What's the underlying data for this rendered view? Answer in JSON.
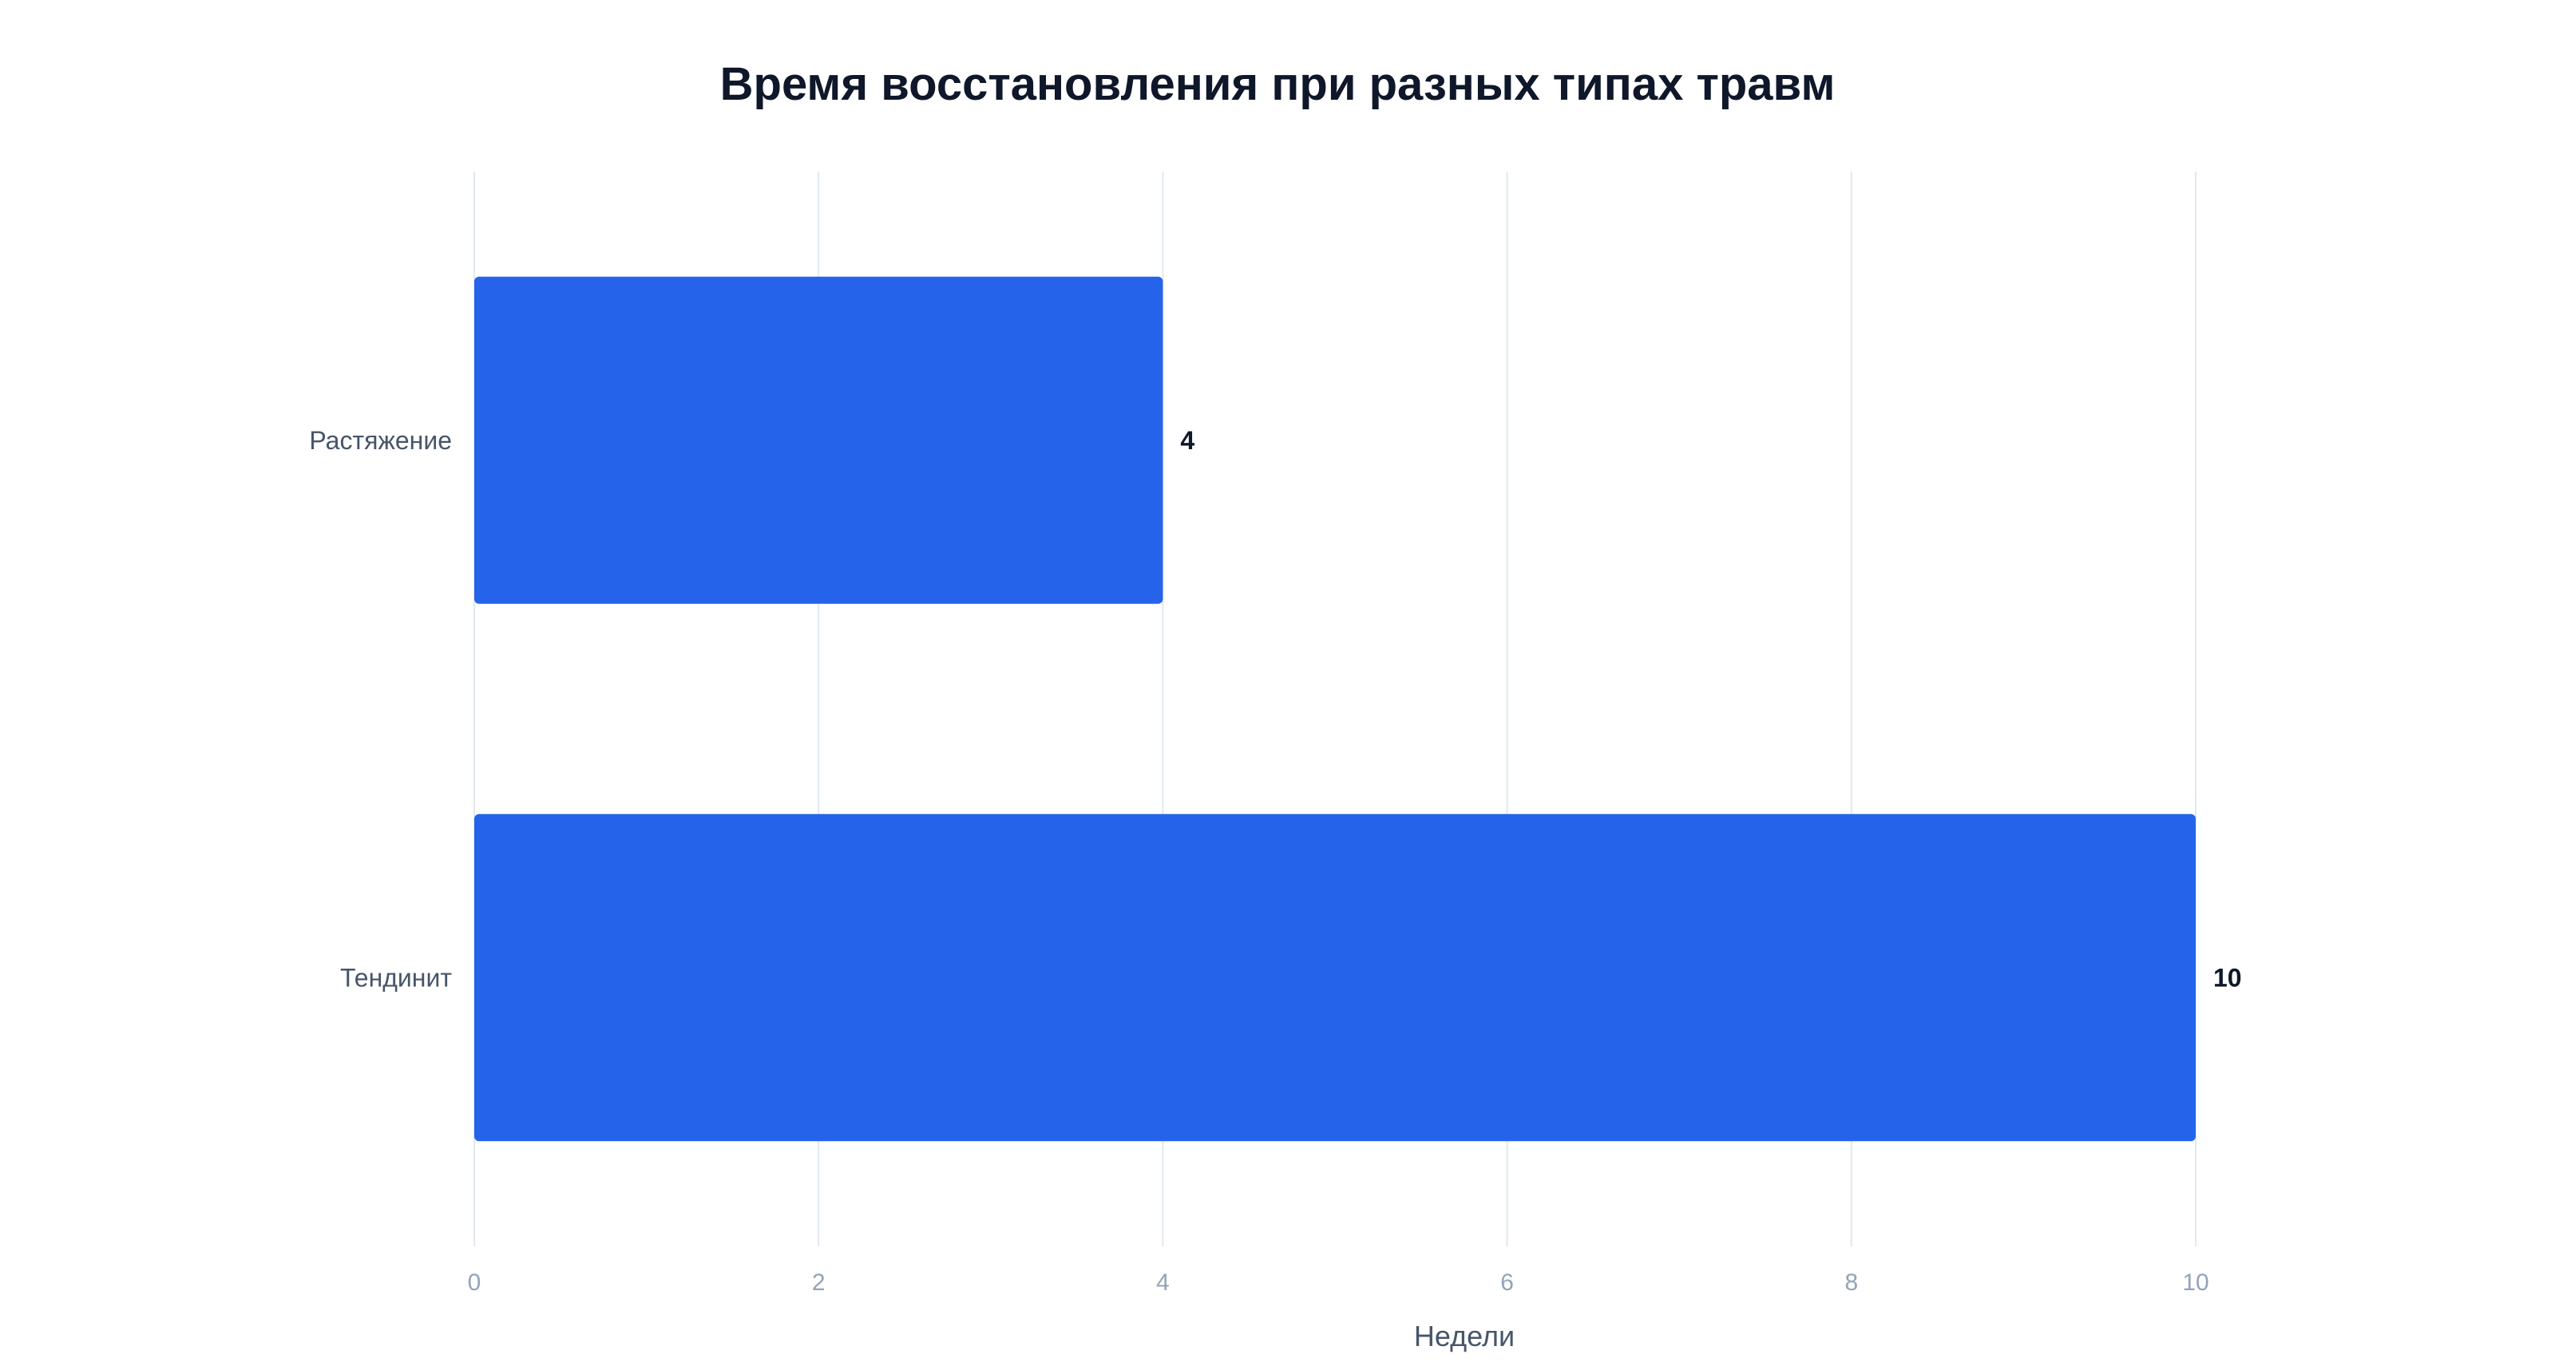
{
  "chart_data": {
    "type": "bar",
    "orientation": "horizontal",
    "title": "Время восстановления при разных типах травм",
    "xlabel": "Недели",
    "ylabel": "",
    "categories": [
      "Растяжение",
      "Тендинит"
    ],
    "values": [
      4,
      10
    ],
    "value_labels": [
      "4",
      "10"
    ],
    "xlim": [
      0,
      10
    ],
    "ticks": [
      0,
      2,
      4,
      6,
      8,
      10
    ],
    "tick_labels": [
      "0",
      "2",
      "4",
      "6",
      "8",
      "10"
    ],
    "grid": true,
    "legend": "none",
    "colors": {
      "bar": "#2563eb",
      "grid": "#e2e8f0",
      "title": "#0f172a"
    }
  }
}
